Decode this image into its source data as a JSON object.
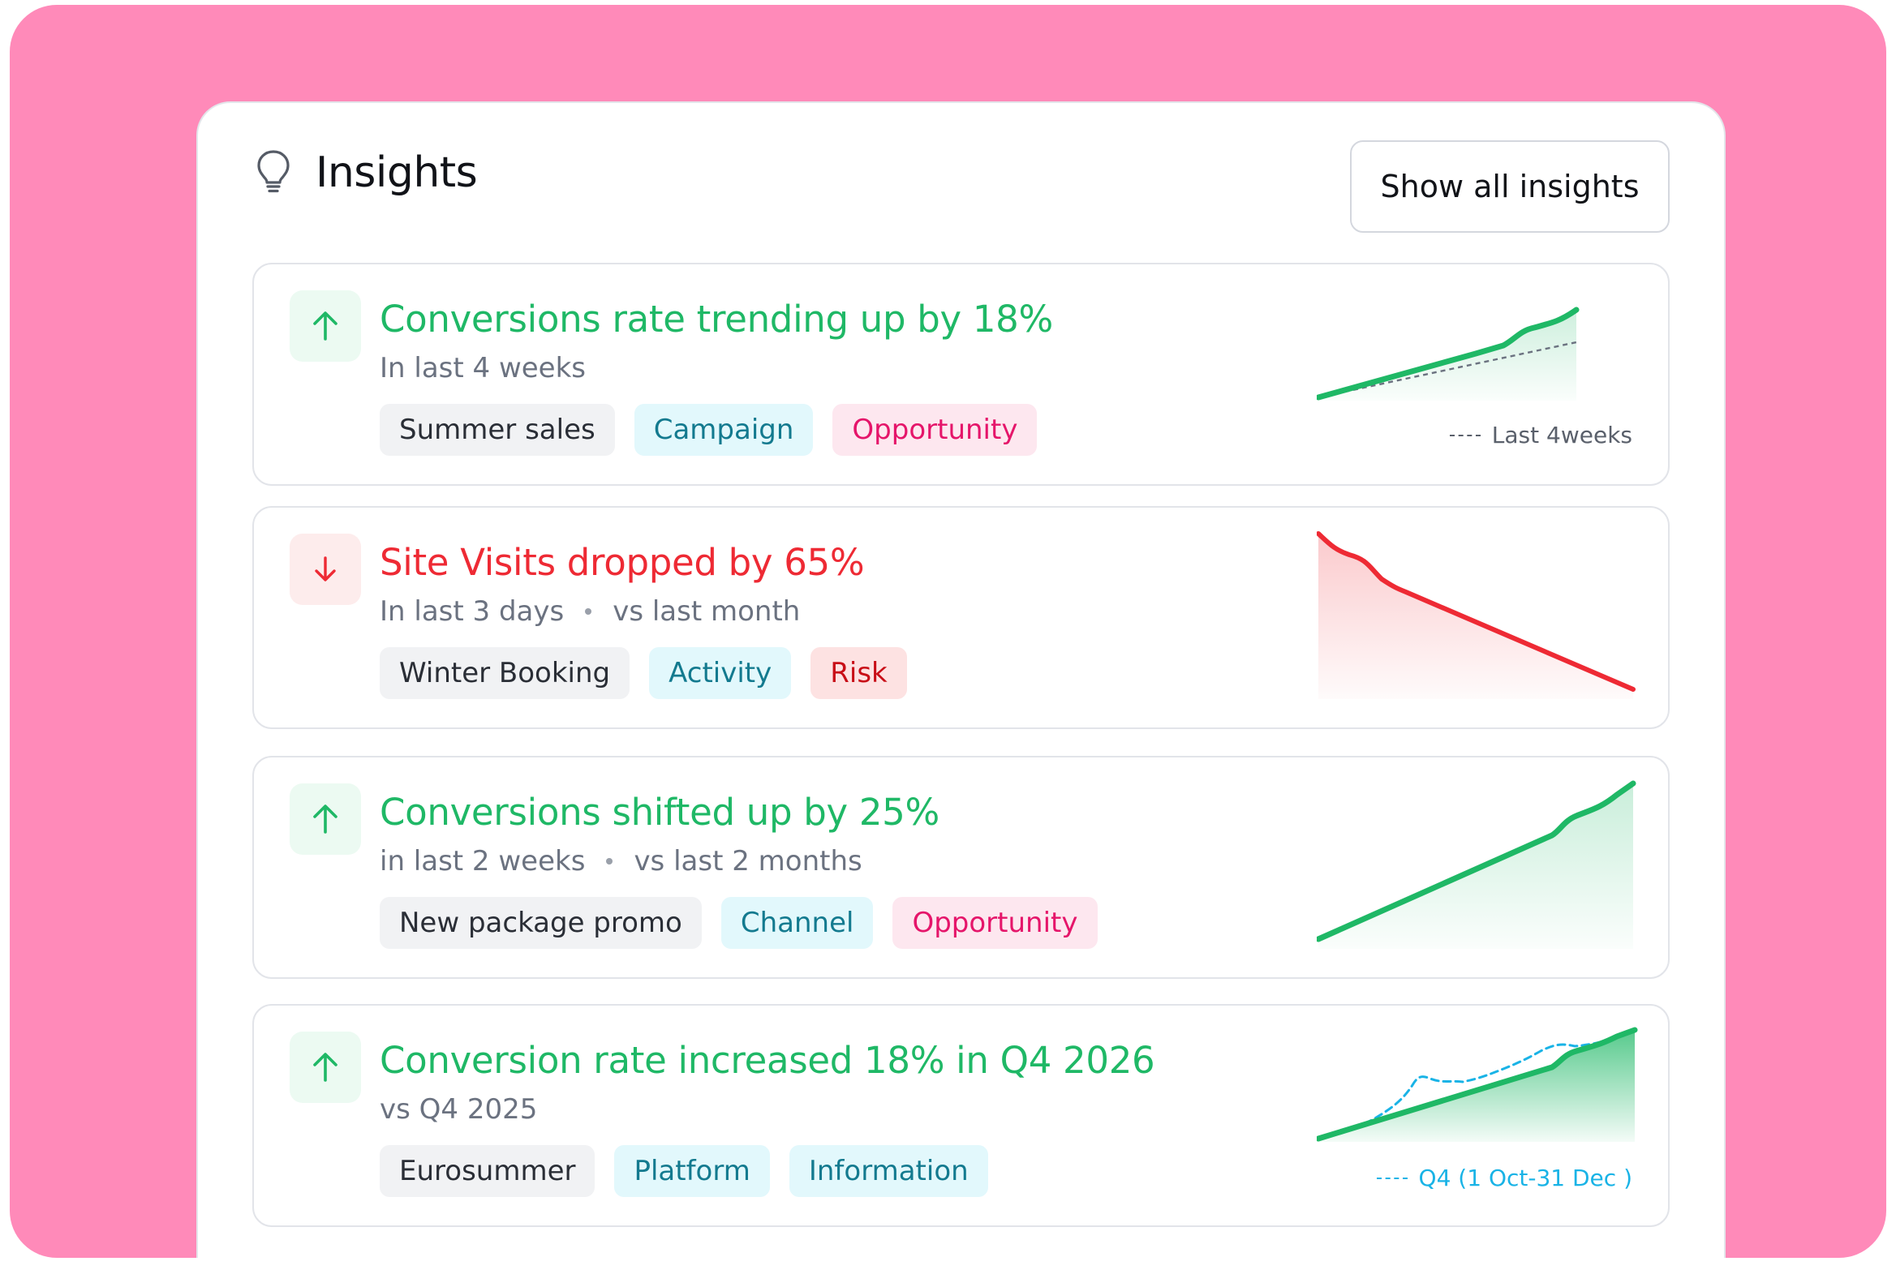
{
  "header": {
    "title": "Insights",
    "show_all_label": "Show all insights"
  },
  "colors": {
    "background": "#ff8ab9",
    "positive": "#1fb866",
    "negative": "#ee2a34",
    "comparison": "#19b3e6"
  },
  "insights": [
    {
      "direction": "up",
      "icon": "arrow-up-icon",
      "title": "Conversions rate trending up by 18%",
      "subtitle": "In last 4 weeks",
      "tags": [
        {
          "label": "Summer sales",
          "style": "gray"
        },
        {
          "label": "Campaign",
          "style": "cyan"
        },
        {
          "label": "Opportunity",
          "style": "pink"
        }
      ],
      "legend": "Last 4weeks"
    },
    {
      "direction": "down",
      "icon": "arrow-down-icon",
      "title": "Site Visits dropped by 65%",
      "subtitle": "In last 3 days",
      "subtitle_compare": "vs last month",
      "tags": [
        {
          "label": "Winter Booking",
          "style": "gray"
        },
        {
          "label": "Activity",
          "style": "cyan"
        },
        {
          "label": "Risk",
          "style": "red"
        }
      ]
    },
    {
      "direction": "up",
      "icon": "arrow-up-icon",
      "title": "Conversions shifted up by 25%",
      "subtitle": "in last 2 weeks",
      "subtitle_compare": "vs last 2 months",
      "tags": [
        {
          "label": "New package promo",
          "style": "gray"
        },
        {
          "label": "Channel",
          "style": "cyan"
        },
        {
          "label": "Opportunity",
          "style": "pink"
        }
      ]
    },
    {
      "direction": "up",
      "icon": "arrow-up-icon",
      "title": "Conversion rate increased 18% in Q4 2026",
      "subtitle": "vs Q4 2025",
      "tags": [
        {
          "label": "Eurosummer",
          "style": "gray"
        },
        {
          "label": "Platform",
          "style": "cyan"
        },
        {
          "label": "Information",
          "style": "cyan"
        }
      ],
      "legend": "Q4 (1 Oct-31 Dec )"
    }
  ]
}
